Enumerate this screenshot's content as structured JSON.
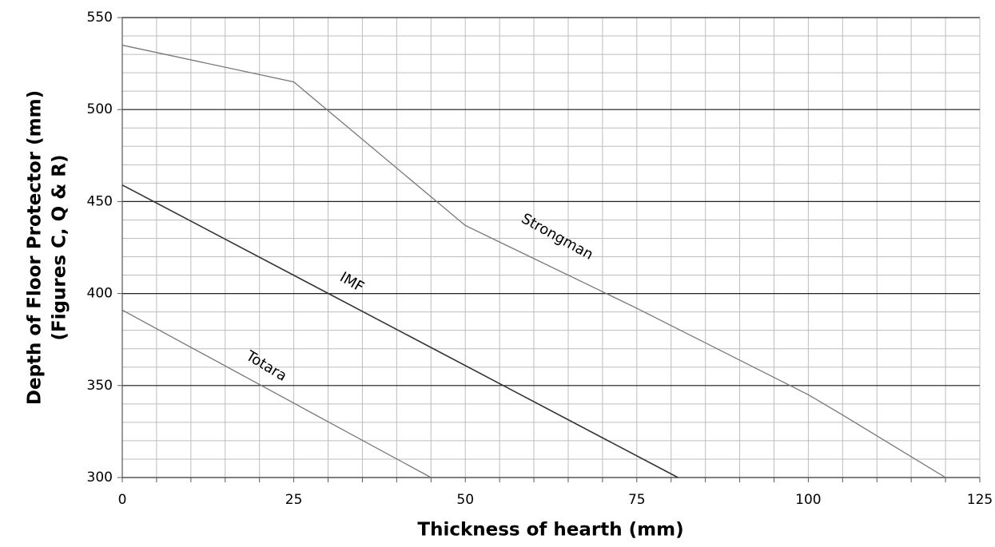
{
  "chart_data": {
    "type": "line",
    "x_label": "Thickness of hearth (mm)",
    "y_label": [
      "Depth of Floor Protector (mm)",
      "(Figures C, Q & R)"
    ],
    "xlim": [
      0,
      125
    ],
    "ylim": [
      300,
      550
    ],
    "xticks": [
      0,
      25,
      50,
      75,
      100,
      125
    ],
    "yticks": [
      300,
      350,
      400,
      450,
      500,
      550
    ],
    "x_minor_ticks": [
      0,
      5,
      10,
      15,
      20,
      25,
      30,
      35,
      40,
      45,
      50,
      55,
      60,
      65,
      70,
      75,
      80,
      85,
      90,
      95,
      100,
      105,
      110,
      115,
      120,
      125
    ],
    "y_minor_ticks": [
      300,
      310,
      320,
      330,
      340,
      350,
      360,
      370,
      380,
      390,
      400,
      410,
      420,
      430,
      440,
      450,
      460,
      470,
      480,
      490,
      500,
      510,
      520,
      530,
      540,
      550
    ],
    "grid": true,
    "series": [
      {
        "name": "Strongman",
        "color": "#777777",
        "x": [
          0,
          25,
          50,
          75,
          100,
          105,
          120
        ],
        "values": [
          535,
          515,
          437,
          392,
          345,
          334,
          300
        ]
      },
      {
        "name": "IMF",
        "color": "#333333",
        "x": [
          0,
          81
        ],
        "values": [
          459,
          300
        ]
      },
      {
        "name": "Totara",
        "color": "#777777",
        "x": [
          0,
          45
        ],
        "values": [
          391,
          300
        ]
      }
    ]
  }
}
